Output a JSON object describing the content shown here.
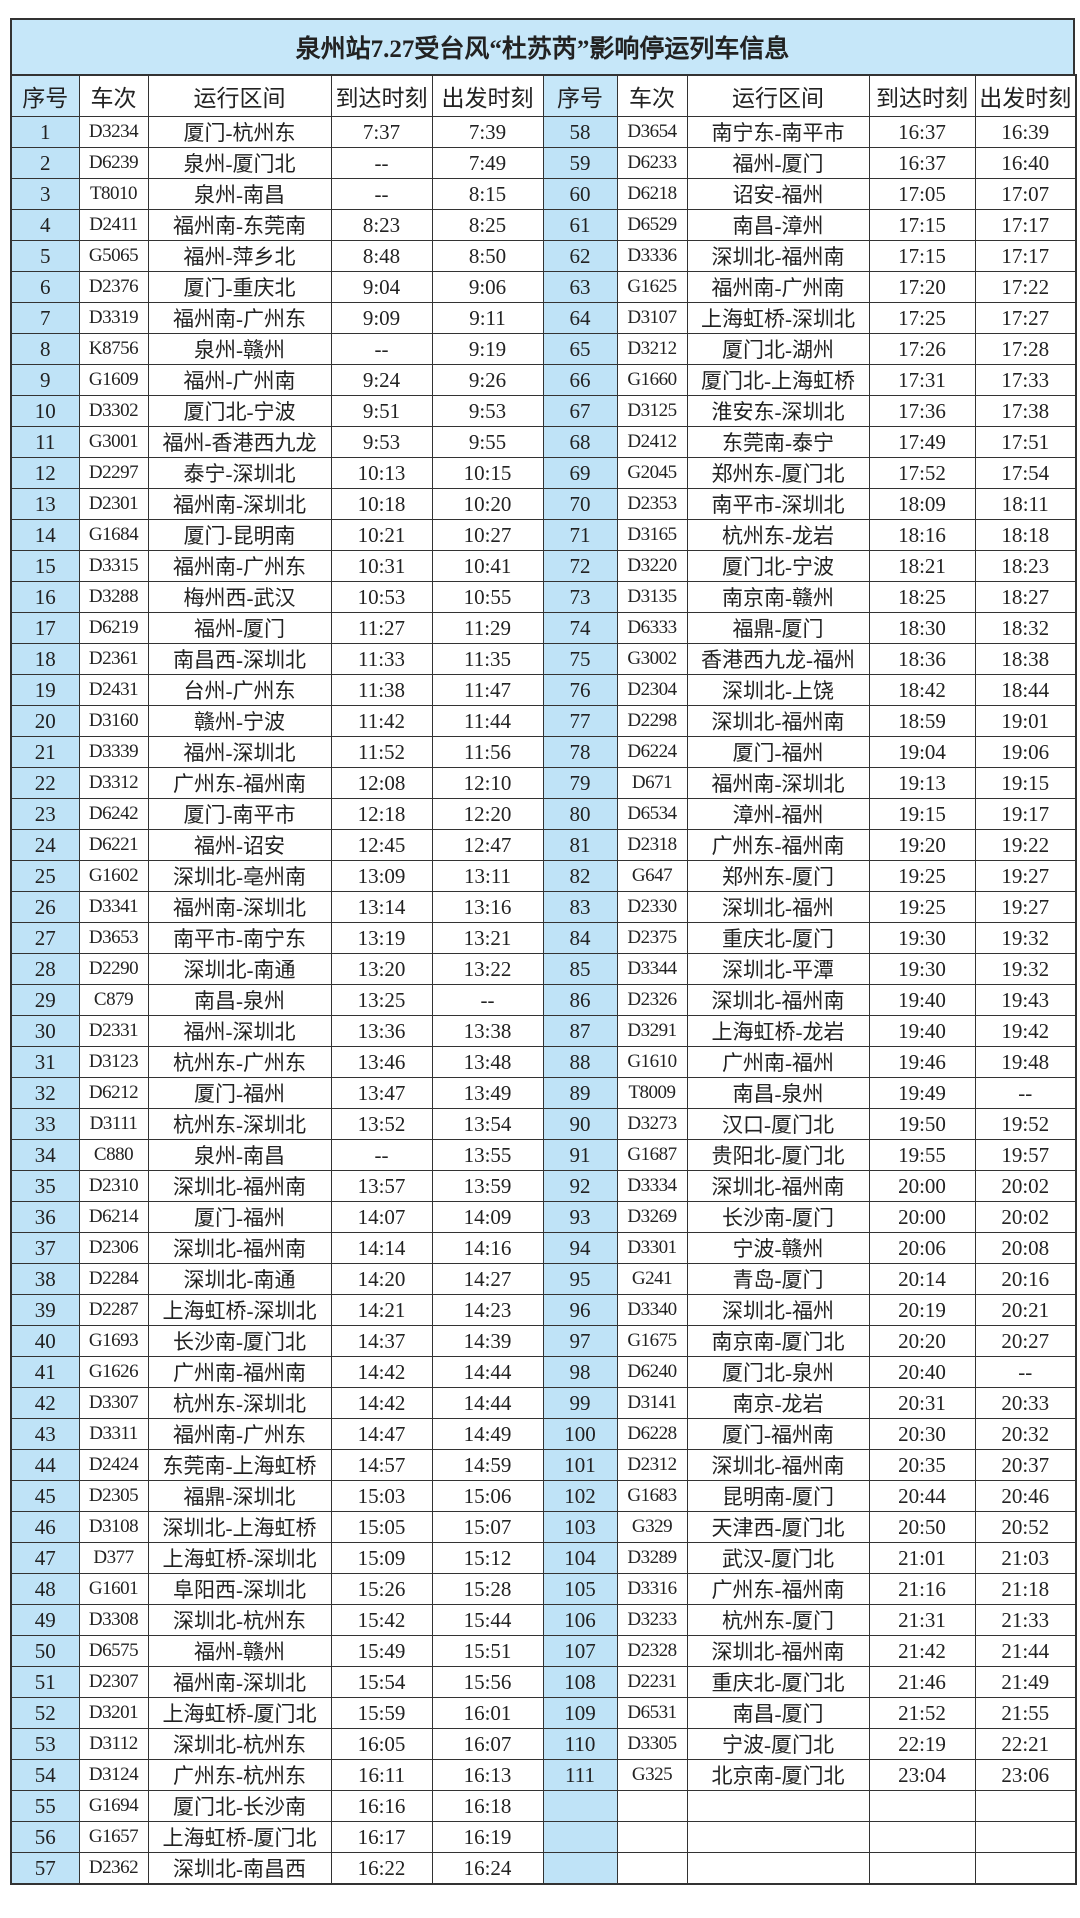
{
  "title": "泉州站7.27受台风“杜苏芮”影响停运列车信息",
  "headers": [
    "序号",
    "车次",
    "运行区间",
    "到达时刻",
    "出发时刻"
  ],
  "colors": {
    "title_bg": "#c6e7f9",
    "index_bg": "#bfe3f7",
    "border": "#333333"
  },
  "left_rows": [
    [
      "1",
      "D3234",
      "厦门-杭州东",
      "7:37",
      "7:39"
    ],
    [
      "2",
      "D6239",
      "泉州-厦门北",
      "--",
      "7:49"
    ],
    [
      "3",
      "T8010",
      "泉州-南昌",
      "--",
      "8:15"
    ],
    [
      "4",
      "D2411",
      "福州南-东莞南",
      "8:23",
      "8:25"
    ],
    [
      "5",
      "G5065",
      "福州-萍乡北",
      "8:48",
      "8:50"
    ],
    [
      "6",
      "D2376",
      "厦门-重庆北",
      "9:04",
      "9:06"
    ],
    [
      "7",
      "D3319",
      "福州南-广州东",
      "9:09",
      "9:11"
    ],
    [
      "8",
      "K8756",
      "泉州-赣州",
      "--",
      "9:19"
    ],
    [
      "9",
      "G1609",
      "福州-广州南",
      "9:24",
      "9:26"
    ],
    [
      "10",
      "D3302",
      "厦门北-宁波",
      "9:51",
      "9:53"
    ],
    [
      "11",
      "G3001",
      "福州-香港西九龙",
      "9:53",
      "9:55"
    ],
    [
      "12",
      "D2297",
      "泰宁-深圳北",
      "10:13",
      "10:15"
    ],
    [
      "13",
      "D2301",
      "福州南-深圳北",
      "10:18",
      "10:20"
    ],
    [
      "14",
      "G1684",
      "厦门-昆明南",
      "10:21",
      "10:27"
    ],
    [
      "15",
      "D3315",
      "福州南-广州东",
      "10:31",
      "10:41"
    ],
    [
      "16",
      "D3288",
      "梅州西-武汉",
      "10:53",
      "10:55"
    ],
    [
      "17",
      "D6219",
      "福州-厦门",
      "11:27",
      "11:29"
    ],
    [
      "18",
      "D2361",
      "南昌西-深圳北",
      "11:33",
      "11:35"
    ],
    [
      "19",
      "D2431",
      "台州-广州东",
      "11:38",
      "11:47"
    ],
    [
      "20",
      "D3160",
      "赣州-宁波",
      "11:42",
      "11:44"
    ],
    [
      "21",
      "D3339",
      "福州-深圳北",
      "11:52",
      "11:56"
    ],
    [
      "22",
      "D3312",
      "广州东-福州南",
      "12:08",
      "12:10"
    ],
    [
      "23",
      "D6242",
      "厦门-南平市",
      "12:18",
      "12:20"
    ],
    [
      "24",
      "D6221",
      "福州-诏安",
      "12:45",
      "12:47"
    ],
    [
      "25",
      "G1602",
      "深圳北-亳州南",
      "13:09",
      "13:11"
    ],
    [
      "26",
      "D3341",
      "福州南-深圳北",
      "13:14",
      "13:16"
    ],
    [
      "27",
      "D3653",
      "南平市-南宁东",
      "13:19",
      "13:21"
    ],
    [
      "28",
      "D2290",
      "深圳北-南通",
      "13:20",
      "13:22"
    ],
    [
      "29",
      "C879",
      "南昌-泉州",
      "13:25",
      "--"
    ],
    [
      "30",
      "D2331",
      "福州-深圳北",
      "13:36",
      "13:38"
    ],
    [
      "31",
      "D3123",
      "杭州东-广州东",
      "13:46",
      "13:48"
    ],
    [
      "32",
      "D6212",
      "厦门-福州",
      "13:47",
      "13:49"
    ],
    [
      "33",
      "D3111",
      "杭州东-深圳北",
      "13:52",
      "13:54"
    ],
    [
      "34",
      "C880",
      "泉州-南昌",
      "--",
      "13:55"
    ],
    [
      "35",
      "D2310",
      "深圳北-福州南",
      "13:57",
      "13:59"
    ],
    [
      "36",
      "D6214",
      "厦门-福州",
      "14:07",
      "14:09"
    ],
    [
      "37",
      "D2306",
      "深圳北-福州南",
      "14:14",
      "14:16"
    ],
    [
      "38",
      "D2284",
      "深圳北-南通",
      "14:20",
      "14:27"
    ],
    [
      "39",
      "D2287",
      "上海虹桥-深圳北",
      "14:21",
      "14:23"
    ],
    [
      "40",
      "G1693",
      "长沙南-厦门北",
      "14:37",
      "14:39"
    ],
    [
      "41",
      "G1626",
      "广州南-福州南",
      "14:42",
      "14:44"
    ],
    [
      "42",
      "D3307",
      "杭州东-深圳北",
      "14:42",
      "14:44"
    ],
    [
      "43",
      "D3311",
      "福州南-广州东",
      "14:47",
      "14:49"
    ],
    [
      "44",
      "D2424",
      "东莞南-上海虹桥",
      "14:57",
      "14:59"
    ],
    [
      "45",
      "D2305",
      "福鼎-深圳北",
      "15:03",
      "15:06"
    ],
    [
      "46",
      "D3108",
      "深圳北-上海虹桥",
      "15:05",
      "15:07"
    ],
    [
      "47",
      "D377",
      "上海虹桥-深圳北",
      "15:09",
      "15:12"
    ],
    [
      "48",
      "G1601",
      "阜阳西-深圳北",
      "15:26",
      "15:28"
    ],
    [
      "49",
      "D3308",
      "深圳北-杭州东",
      "15:42",
      "15:44"
    ],
    [
      "50",
      "D6575",
      "福州-赣州",
      "15:49",
      "15:51"
    ],
    [
      "51",
      "D2307",
      "福州南-深圳北",
      "15:54",
      "15:56"
    ],
    [
      "52",
      "D3201",
      "上海虹桥-厦门北",
      "15:59",
      "16:01"
    ],
    [
      "53",
      "D3112",
      "深圳北-杭州东",
      "16:05",
      "16:07"
    ],
    [
      "54",
      "D3124",
      "广州东-杭州东",
      "16:11",
      "16:13"
    ],
    [
      "55",
      "G1694",
      "厦门北-长沙南",
      "16:16",
      "16:18"
    ],
    [
      "56",
      "G1657",
      "上海虹桥-厦门北",
      "16:17",
      "16:19"
    ],
    [
      "57",
      "D2362",
      "深圳北-南昌西",
      "16:22",
      "16:24"
    ]
  ],
  "right_rows": [
    [
      "58",
      "D3654",
      "南宁东-南平市",
      "16:37",
      "16:39"
    ],
    [
      "59",
      "D6233",
      "福州-厦门",
      "16:37",
      "16:40"
    ],
    [
      "60",
      "D6218",
      "诏安-福州",
      "17:05",
      "17:07"
    ],
    [
      "61",
      "D6529",
      "南昌-漳州",
      "17:15",
      "17:17"
    ],
    [
      "62",
      "D3336",
      "深圳北-福州南",
      "17:15",
      "17:17"
    ],
    [
      "63",
      "G1625",
      "福州南-广州南",
      "17:20",
      "17:22"
    ],
    [
      "64",
      "D3107",
      "上海虹桥-深圳北",
      "17:25",
      "17:27"
    ],
    [
      "65",
      "D3212",
      "厦门北-湖州",
      "17:26",
      "17:28"
    ],
    [
      "66",
      "G1660",
      "厦门北-上海虹桥",
      "17:31",
      "17:33"
    ],
    [
      "67",
      "D3125",
      "淮安东-深圳北",
      "17:36",
      "17:38"
    ],
    [
      "68",
      "D2412",
      "东莞南-泰宁",
      "17:49",
      "17:51"
    ],
    [
      "69",
      "G2045",
      "郑州东-厦门北",
      "17:52",
      "17:54"
    ],
    [
      "70",
      "D2353",
      "南平市-深圳北",
      "18:09",
      "18:11"
    ],
    [
      "71",
      "D3165",
      "杭州东-龙岩",
      "18:16",
      "18:18"
    ],
    [
      "72",
      "D3220",
      "厦门北-宁波",
      "18:21",
      "18:23"
    ],
    [
      "73",
      "D3135",
      "南京南-赣州",
      "18:25",
      "18:27"
    ],
    [
      "74",
      "D6333",
      "福鼎-厦门",
      "18:30",
      "18:32"
    ],
    [
      "75",
      "G3002",
      "香港西九龙-福州",
      "18:36",
      "18:38"
    ],
    [
      "76",
      "D2304",
      "深圳北-上饶",
      "18:42",
      "18:44"
    ],
    [
      "77",
      "D2298",
      "深圳北-福州南",
      "18:59",
      "19:01"
    ],
    [
      "78",
      "D6224",
      "厦门-福州",
      "19:04",
      "19:06"
    ],
    [
      "79",
      "D671",
      "福州南-深圳北",
      "19:13",
      "19:15"
    ],
    [
      "80",
      "D6534",
      "漳州-福州",
      "19:15",
      "19:17"
    ],
    [
      "81",
      "D2318",
      "广州东-福州南",
      "19:20",
      "19:22"
    ],
    [
      "82",
      "G647",
      "郑州东-厦门",
      "19:25",
      "19:27"
    ],
    [
      "83",
      "D2330",
      "深圳北-福州",
      "19:25",
      "19:27"
    ],
    [
      "84",
      "D2375",
      "重庆北-厦门",
      "19:30",
      "19:32"
    ],
    [
      "85",
      "D3344",
      "深圳北-平潭",
      "19:30",
      "19:32"
    ],
    [
      "86",
      "D2326",
      "深圳北-福州南",
      "19:40",
      "19:43"
    ],
    [
      "87",
      "D3291",
      "上海虹桥-龙岩",
      "19:40",
      "19:42"
    ],
    [
      "88",
      "G1610",
      "广州南-福州",
      "19:46",
      "19:48"
    ],
    [
      "89",
      "T8009",
      "南昌-泉州",
      "19:49",
      "--"
    ],
    [
      "90",
      "D3273",
      "汉口-厦门北",
      "19:50",
      "19:52"
    ],
    [
      "91",
      "G1687",
      "贵阳北-厦门北",
      "19:55",
      "19:57"
    ],
    [
      "92",
      "D3334",
      "深圳北-福州南",
      "20:00",
      "20:02"
    ],
    [
      "93",
      "D3269",
      "长沙南-厦门",
      "20:00",
      "20:02"
    ],
    [
      "94",
      "D3301",
      "宁波-赣州",
      "20:06",
      "20:08"
    ],
    [
      "95",
      "G241",
      "青岛-厦门",
      "20:14",
      "20:16"
    ],
    [
      "96",
      "D3340",
      "深圳北-福州",
      "20:19",
      "20:21"
    ],
    [
      "97",
      "G1675",
      "南京南-厦门北",
      "20:20",
      "20:27"
    ],
    [
      "98",
      "D6240",
      "厦门北-泉州",
      "20:40",
      "--"
    ],
    [
      "99",
      "D3141",
      "南京-龙岩",
      "20:31",
      "20:33"
    ],
    [
      "100",
      "D6228",
      "厦门-福州南",
      "20:30",
      "20:32"
    ],
    [
      "101",
      "D2312",
      "深圳北-福州南",
      "20:35",
      "20:37"
    ],
    [
      "102",
      "G1683",
      "昆明南-厦门",
      "20:44",
      "20:46"
    ],
    [
      "103",
      "G329",
      "天津西-厦门北",
      "20:50",
      "20:52"
    ],
    [
      "104",
      "D3289",
      "武汉-厦门北",
      "21:01",
      "21:03"
    ],
    [
      "105",
      "D3316",
      "广州东-福州南",
      "21:16",
      "21:18"
    ],
    [
      "106",
      "D3233",
      "杭州东-厦门",
      "21:31",
      "21:33"
    ],
    [
      "107",
      "D2328",
      "深圳北-福州南",
      "21:42",
      "21:44"
    ],
    [
      "108",
      "D2231",
      "重庆北-厦门北",
      "21:46",
      "21:49"
    ],
    [
      "109",
      "D6531",
      "南昌-厦门",
      "21:52",
      "21:55"
    ],
    [
      "110",
      "D3305",
      "宁波-厦门北",
      "22:19",
      "22:21"
    ],
    [
      "111",
      "G325",
      "北京南-厦门北",
      "23:04",
      "23:06"
    ]
  ]
}
